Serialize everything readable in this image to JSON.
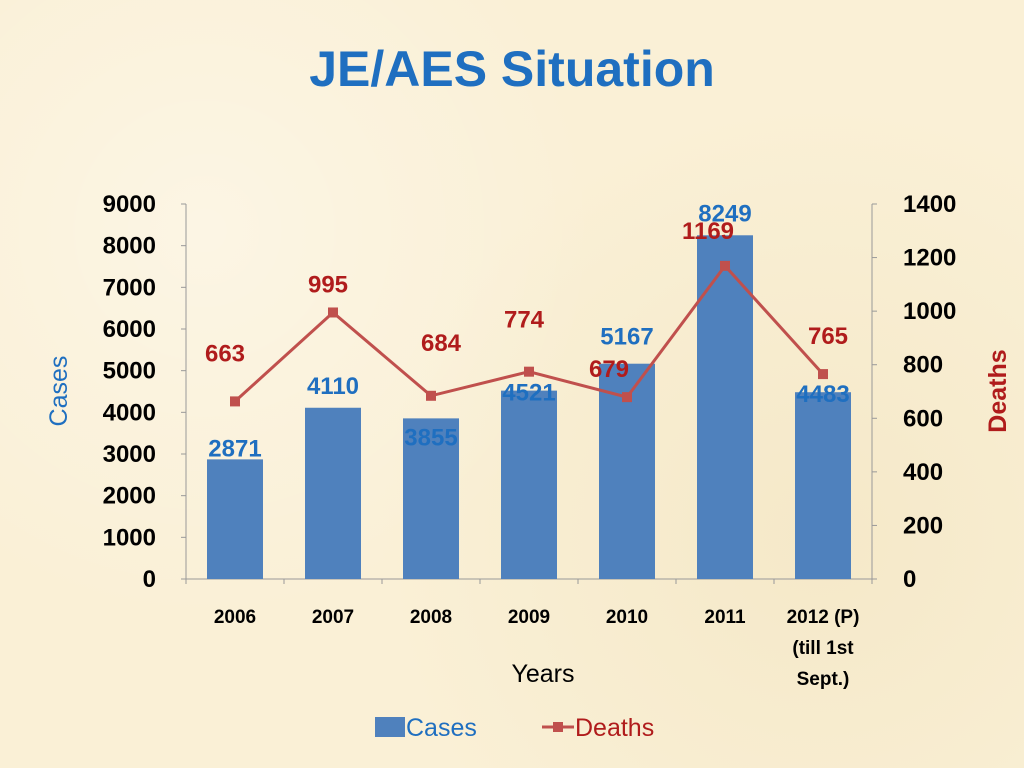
{
  "chart_data": {
    "type": "bar",
    "title": "JE/AES Situation",
    "categories": [
      "2006",
      "2007",
      "2008",
      "2009",
      "2010",
      "2011",
      "2012 (P) (till 1st Sept.)"
    ],
    "xlabel": "Years",
    "ylabel": "Cases",
    "y2label": "Deaths",
    "ylim": [
      0,
      9000
    ],
    "y2lim": [
      0,
      1400
    ],
    "yticks": [
      0,
      1000,
      2000,
      3000,
      4000,
      5000,
      6000,
      7000,
      8000,
      9000
    ],
    "y2ticks": [
      0,
      200,
      400,
      600,
      800,
      1000,
      1200,
      1400
    ],
    "legend": "bottom",
    "grid": false,
    "series": [
      {
        "name": "Cases",
        "type": "bar",
        "axis": "left",
        "color": "#4f81bd",
        "values": [
          2871,
          4110,
          3855,
          4521,
          5167,
          8249,
          4483
        ]
      },
      {
        "name": "Deaths",
        "type": "line",
        "axis": "right",
        "color": "#c0504d",
        "values": [
          663,
          995,
          684,
          774,
          679,
          1169,
          765
        ]
      }
    ]
  }
}
